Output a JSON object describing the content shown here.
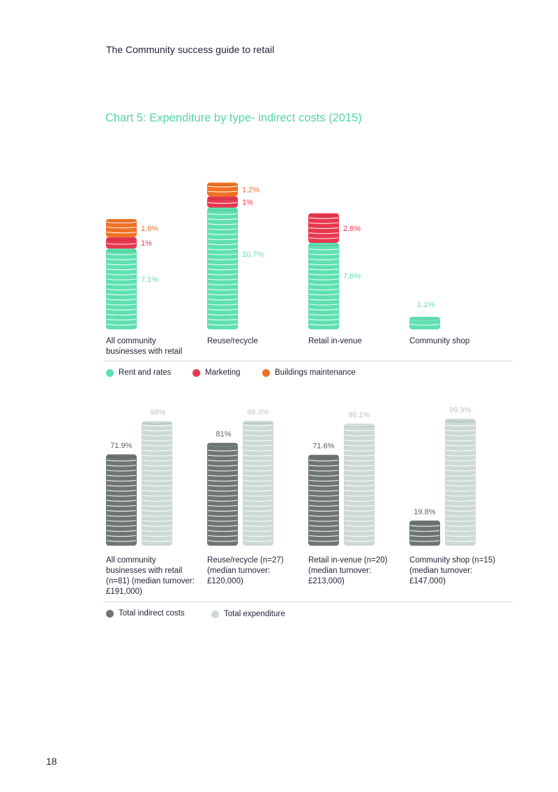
{
  "header": {
    "title": "The Community success guide to retail"
  },
  "page_number": "18",
  "colors": {
    "rent": "#5fe0b1",
    "marketing": "#e8384f",
    "buildings": "#f07124",
    "indirect": "#6d7675",
    "total": "#ccd9d6"
  },
  "chart_data": [
    {
      "type": "bar",
      "stacked": true,
      "title": "Chart 5: Expenditure by type- indirect costs (2015)",
      "categories": [
        "All community businesses with retail",
        "Reuse/recycle",
        "Retail in-venue",
        "Community shop"
      ],
      "series": [
        {
          "name": "Rent and rates",
          "values": [
            7.1,
            10.7,
            7.6,
            1.1
          ],
          "labels": [
            "7.1%",
            "10.7%",
            "7.6%",
            "1.1%"
          ]
        },
        {
          "name": "Marketing",
          "values": [
            1,
            1,
            2.6,
            0
          ],
          "labels": [
            "1%",
            "1%",
            "2.6%",
            ""
          ]
        },
        {
          "name": "Buildings maintenance",
          "values": [
            1.6,
            1.2,
            0,
            0
          ],
          "labels": [
            "1.6%",
            "1.2%",
            "",
            ""
          ]
        }
      ],
      "legend_position": "bottom"
    },
    {
      "type": "bar",
      "categories": [
        "All community businesses with retail (n=81) (median turnover: £191,000)",
        "Reuse/recycle (n=27) (median turnover: £120,000)",
        "Retail in-venue (n=20) (median turnover: £213,000)",
        "Community shop (n=15) (median turnover: £147,000)"
      ],
      "series": [
        {
          "name": "Total indirect costs",
          "values": [
            71.9,
            81,
            71.6,
            19.8
          ],
          "labels": [
            "71.9%",
            "81%",
            "71.6%",
            "19.8%"
          ]
        },
        {
          "name": "Total expenditure",
          "values": [
            98,
            98.3,
            96.1,
            99.9
          ],
          "labels": [
            "98%",
            "98.3%",
            "96.1%",
            "99.9%"
          ]
        }
      ],
      "legend_position": "bottom"
    }
  ],
  "chart1": {
    "categories": [
      {
        "lines": [
          "All community",
          "businesses with retail"
        ]
      },
      {
        "lines": [
          "Reuse/recycle"
        ]
      },
      {
        "lines": [
          "Retail in-venue"
        ]
      },
      {
        "lines": [
          "Community shop"
        ]
      }
    ],
    "legend": [
      "Rent and rates",
      "Marketing",
      "Buildings maintenance"
    ]
  },
  "chart2": {
    "categories": [
      {
        "lines": [
          "All community",
          "businesses with retail",
          "(n=81) (median turnover:",
          "£191,000)"
        ]
      },
      {
        "lines": [
          "Reuse/recycle (n=27)",
          "(median turnover:",
          "£120,000)"
        ]
      },
      {
        "lines": [
          "Retail in-venue (n=20)",
          "(median turnover:",
          "£213,000)"
        ]
      },
      {
        "lines": [
          "Community shop (n=15)",
          "(median turnover:",
          "£147,000)"
        ]
      }
    ],
    "legend": [
      "Total indirect costs",
      "Total expenditure"
    ]
  }
}
